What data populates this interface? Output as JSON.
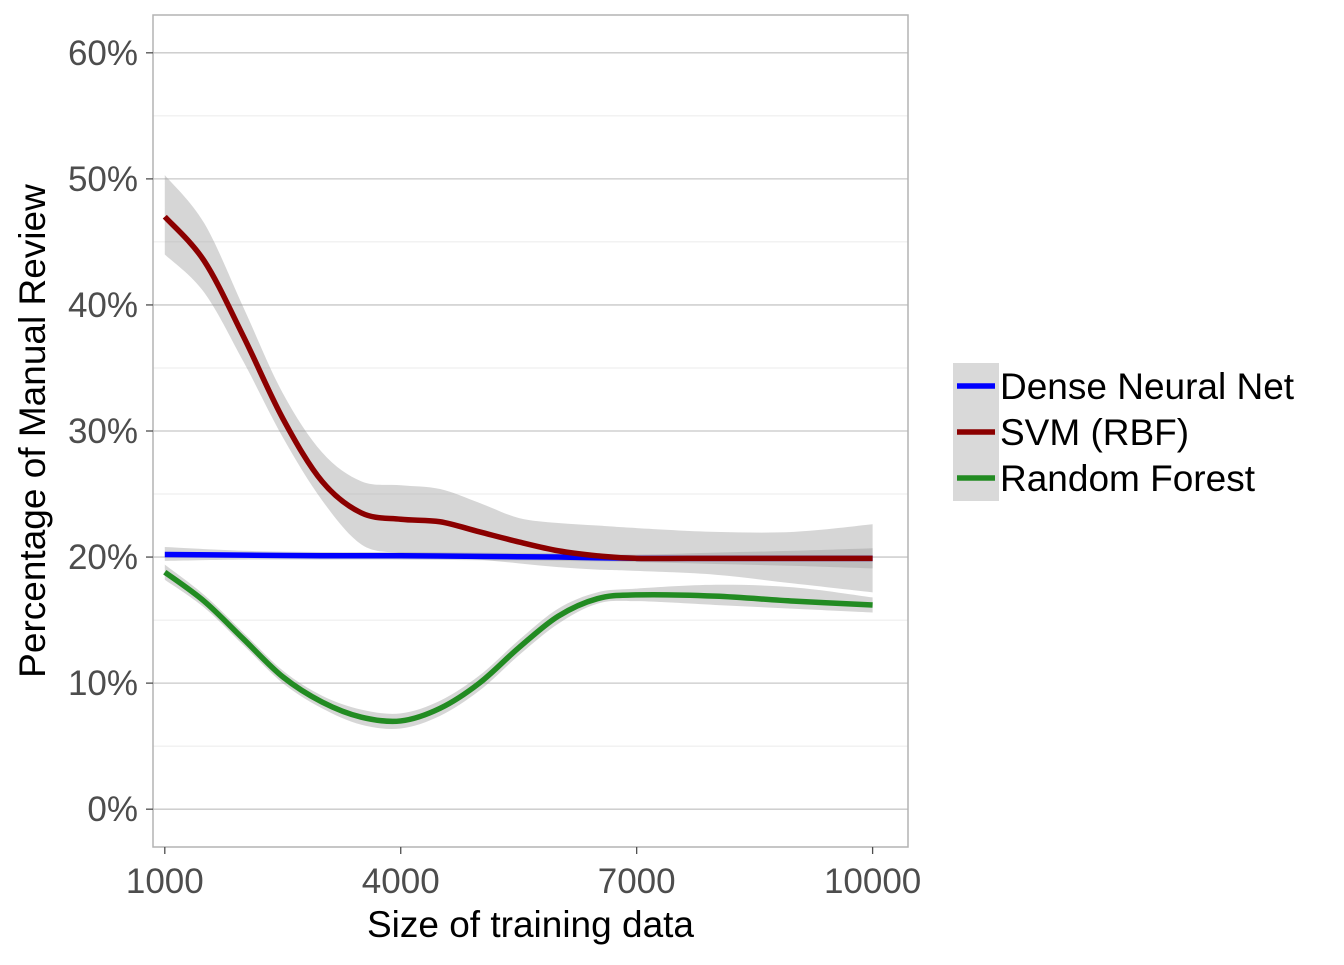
{
  "chart_data": {
    "type": "line",
    "title": "",
    "xlabel": "Size of training data",
    "ylabel": "Percentage of Manual Review",
    "x_ticks": [
      1000,
      4000,
      7000,
      10000
    ],
    "x_tick_labels": [
      "1000",
      "4000",
      "7000",
      "10000"
    ],
    "y_ticks": [
      0,
      10,
      20,
      30,
      40,
      50,
      60
    ],
    "y_tick_labels": [
      "0%",
      "10%",
      "20%",
      "30%",
      "40%",
      "50%",
      "60%"
    ],
    "xlim": [
      850,
      10450
    ],
    "ylim": [
      -3,
      63
    ],
    "grid": true,
    "legend_position": "right",
    "series": [
      {
        "name": "Dense Neural Net",
        "color": "#0000ff",
        "x": [
          1000,
          2000,
          3000,
          4000,
          5000,
          6000,
          7000,
          8000,
          9000,
          10000
        ],
        "y": [
          20.2,
          20.15,
          20.1,
          20.1,
          20.05,
          20.0,
          19.9,
          19.9,
          19.9,
          19.9
        ],
        "ci_low": [
          19.7,
          19.8,
          19.8,
          19.8,
          19.75,
          19.7,
          19.6,
          19.45,
          19.3,
          19.1
        ],
        "ci_high": [
          20.8,
          20.5,
          20.4,
          20.4,
          20.35,
          20.3,
          20.2,
          20.35,
          20.5,
          20.7
        ]
      },
      {
        "name": "SVM (RBF)",
        "color": "#8b0000",
        "x": [
          1000,
          1500,
          2000,
          2500,
          3000,
          3500,
          4000,
          4500,
          5000,
          5500,
          6000,
          6500,
          7000,
          8000,
          9000,
          10000
        ],
        "y": [
          47.0,
          43.5,
          37.5,
          31.0,
          26.0,
          23.5,
          23.0,
          22.8,
          22.0,
          21.2,
          20.5,
          20.1,
          19.9,
          19.9,
          19.9,
          19.9
        ],
        "ci_low": [
          44.0,
          41.0,
          35.5,
          29.5,
          24.5,
          21.0,
          20.3,
          20.0,
          19.8,
          19.5,
          19.2,
          19.0,
          18.9,
          18.6,
          17.9,
          17.2
        ],
        "ci_high": [
          50.3,
          46.5,
          39.8,
          33.0,
          28.3,
          26.0,
          25.7,
          25.4,
          24.3,
          23.1,
          22.7,
          22.5,
          22.3,
          22.0,
          22.0,
          22.6
        ]
      },
      {
        "name": "Random Forest",
        "color": "#228b22",
        "x": [
          1000,
          1500,
          2000,
          2500,
          3000,
          3500,
          4000,
          4500,
          5000,
          5500,
          6000,
          6500,
          7000,
          8000,
          9000,
          10000
        ],
        "y": [
          18.8,
          16.5,
          13.5,
          10.5,
          8.5,
          7.3,
          7.0,
          8.0,
          10.0,
          12.8,
          15.3,
          16.7,
          17.0,
          16.9,
          16.5,
          16.2
        ],
        "ci_low": [
          18.2,
          16.0,
          13.0,
          10.0,
          8.0,
          6.7,
          6.4,
          7.4,
          9.4,
          12.2,
          14.7,
          16.3,
          16.5,
          16.2,
          15.9,
          15.6
        ],
        "ci_high": [
          19.4,
          17.0,
          14.0,
          11.0,
          9.0,
          7.9,
          7.6,
          8.6,
          10.6,
          13.4,
          15.9,
          17.2,
          17.5,
          17.8,
          17.6,
          16.8
        ]
      }
    ]
  }
}
